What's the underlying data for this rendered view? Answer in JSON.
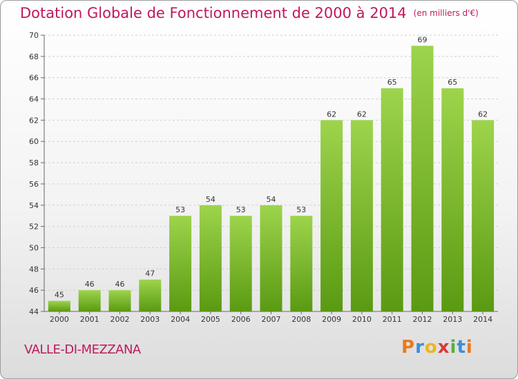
{
  "chart_data": {
    "type": "bar",
    "title": "Dotation Globale de Fonctionnement de 2000 à 2014",
    "subtitle": "(en milliers d'€)",
    "categories": [
      "2000",
      "2001",
      "2002",
      "2003",
      "2004",
      "2005",
      "2006",
      "2007",
      "2008",
      "2009",
      "2010",
      "2011",
      "2012",
      "2013",
      "2014"
    ],
    "values": [
      45,
      46,
      46,
      47,
      53,
      54,
      53,
      54,
      53,
      62,
      62,
      65,
      69,
      65,
      62
    ],
    "ylim": [
      44,
      70
    ],
    "yticks": [
      44,
      46,
      48,
      50,
      52,
      54,
      56,
      58,
      60,
      62,
      64,
      66,
      68,
      70
    ],
    "grid": true,
    "bar_color_top": "#9dd44c",
    "bar_color_bottom": "#5a9a12"
  },
  "commune": "VALLE-DI-MEZZANA",
  "brand": {
    "letters": [
      "P",
      "r",
      "o",
      "x",
      "i",
      "t",
      "i"
    ],
    "colors": [
      "#e87a1e",
      "#3a8fd8",
      "#e8b81e",
      "#d83a3a",
      "#56b13a",
      "#3a8fd8",
      "#e87a1e"
    ]
  }
}
